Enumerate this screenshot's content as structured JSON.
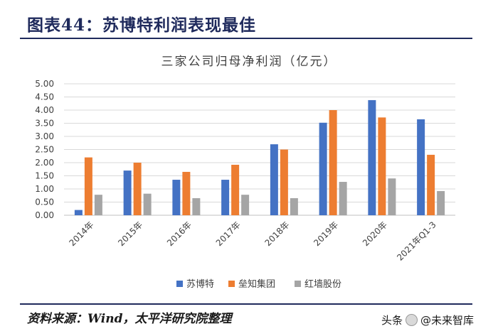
{
  "header": {
    "title": "图表44：苏博特利润表现最佳"
  },
  "footer": {
    "source": "资料来源：Wind，太平洋研究院整理",
    "watermark_prefix": "头条",
    "watermark_handle": "@未来智库",
    "watermark_icon": "wechat-icon"
  },
  "colors": {
    "title_bar": "#1f2a5c",
    "series": [
      "#4472c4",
      "#ed7d31",
      "#a5a5a5"
    ],
    "grid": "#d9d9d9"
  },
  "chart_data": {
    "type": "bar",
    "title": "三家公司归母净利润（亿元）",
    "xlabel": "",
    "ylabel": "",
    "categories": [
      "2014年",
      "2015年",
      "2016年",
      "2017年",
      "2018年",
      "2019年",
      "2020年",
      "2021年Q1-3"
    ],
    "series": [
      {
        "name": "苏博特",
        "values": [
          0.2,
          1.7,
          1.35,
          1.35,
          2.7,
          3.52,
          4.38,
          3.65
        ]
      },
      {
        "name": "垒知集团",
        "values": [
          2.2,
          2.0,
          1.65,
          1.92,
          2.5,
          4.0,
          3.72,
          2.3
        ]
      },
      {
        "name": "红墙股份",
        "values": [
          0.78,
          0.82,
          0.65,
          0.78,
          0.65,
          1.27,
          1.4,
          0.92
        ]
      }
    ],
    "yticks": [
      "0.00",
      "0.50",
      "1.00",
      "1.50",
      "2.00",
      "2.50",
      "3.00",
      "3.50",
      "4.00",
      "4.50",
      "5.00"
    ],
    "ylim": [
      0,
      5
    ],
    "grid": true,
    "legend_position": "bottom"
  }
}
